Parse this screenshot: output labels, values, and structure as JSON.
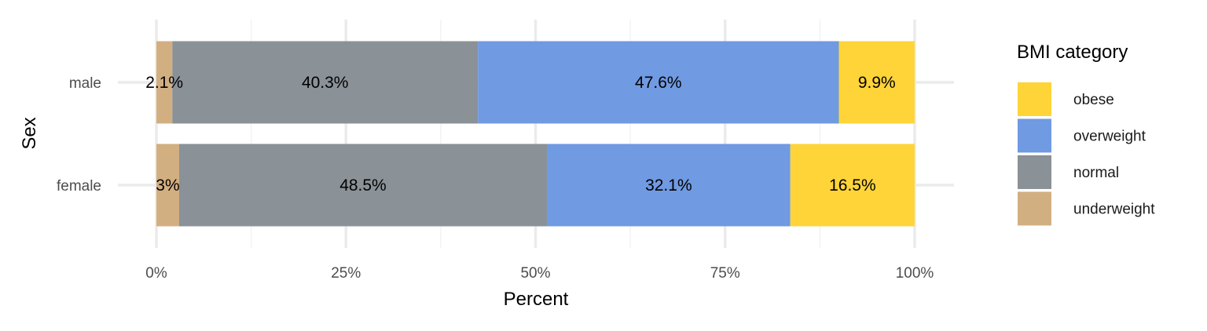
{
  "chart_data": {
    "type": "bar",
    "orientation": "horizontal",
    "stacked": true,
    "xlabel": "Percent",
    "ylabel": "Sex",
    "xlim": [
      0,
      100
    ],
    "x_ticks": [
      0,
      25,
      50,
      75,
      100
    ],
    "x_tick_labels": [
      "0%",
      "25%",
      "50%",
      "75%",
      "100%"
    ],
    "grid": true,
    "categories": [
      "male",
      "female"
    ],
    "series": [
      {
        "name": "underweight",
        "color": "#D2AF81",
        "values": [
          2.1,
          3
        ],
        "labels": [
          "2.1%",
          "3%"
        ]
      },
      {
        "name": "normal",
        "color": "#8A9197",
        "values": [
          40.3,
          48.5
        ],
        "labels": [
          "40.3%",
          "48.5%"
        ]
      },
      {
        "name": "overweight",
        "color": "#709AE1",
        "values": [
          47.6,
          32.1
        ],
        "labels": [
          "47.6%",
          "32.1%"
        ]
      },
      {
        "name": "obese",
        "color": "#FED439",
        "values": [
          9.9,
          16.5
        ],
        "labels": [
          "9.9%",
          "16.5%"
        ]
      }
    ],
    "legend": {
      "title": "BMI category",
      "position": "right",
      "order": [
        "obese",
        "overweight",
        "normal",
        "underweight"
      ]
    }
  }
}
